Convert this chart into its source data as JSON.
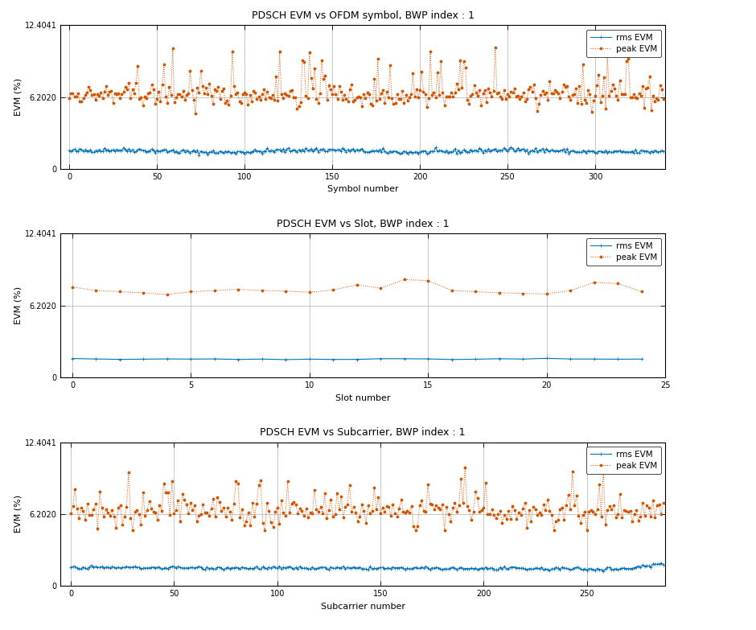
{
  "title1": "PDSCH EVM vs OFDM symbol, BWP index : 1",
  "title2": "PDSCH EVM vs Slot, BWP index : 1",
  "title3": "PDSCH EVM vs Subcarrier, BWP index : 1",
  "xlabel1": "Symbol number",
  "xlabel2": "Slot number",
  "xlabel3": "Subcarrier number",
  "ylabel": "EVM (%)",
  "ylim": [
    0,
    12.4041
  ],
  "ytick_vals": [
    0,
    6.202,
    12.4041
  ],
  "ytick_labels": [
    "0",
    "6.2020",
    "12.4041"
  ],
  "plot1_n": 340,
  "plot1_xlim": [
    -5,
    340
  ],
  "plot1_xticks": [
    0,
    50,
    100,
    150,
    200,
    250,
    300
  ],
  "plot2_n": 25,
  "plot2_xlim": [
    -0.5,
    25
  ],
  "plot2_xticks": [
    0,
    5,
    10,
    15,
    20,
    25
  ],
  "plot3_n": 288,
  "plot3_xlim": [
    -5,
    288
  ],
  "plot3_xticks": [
    0,
    50,
    100,
    150,
    200,
    250
  ],
  "rms_color": "#0072BD",
  "peak_color": "#D45500",
  "legend_rms": "rms EVM",
  "legend_peak": "peak EVM",
  "grid_color": "#B0B0B0",
  "bg_color": "#FFFFFF",
  "fig_width": 9.4,
  "fig_height": 7.83,
  "fig_dpi": 100
}
